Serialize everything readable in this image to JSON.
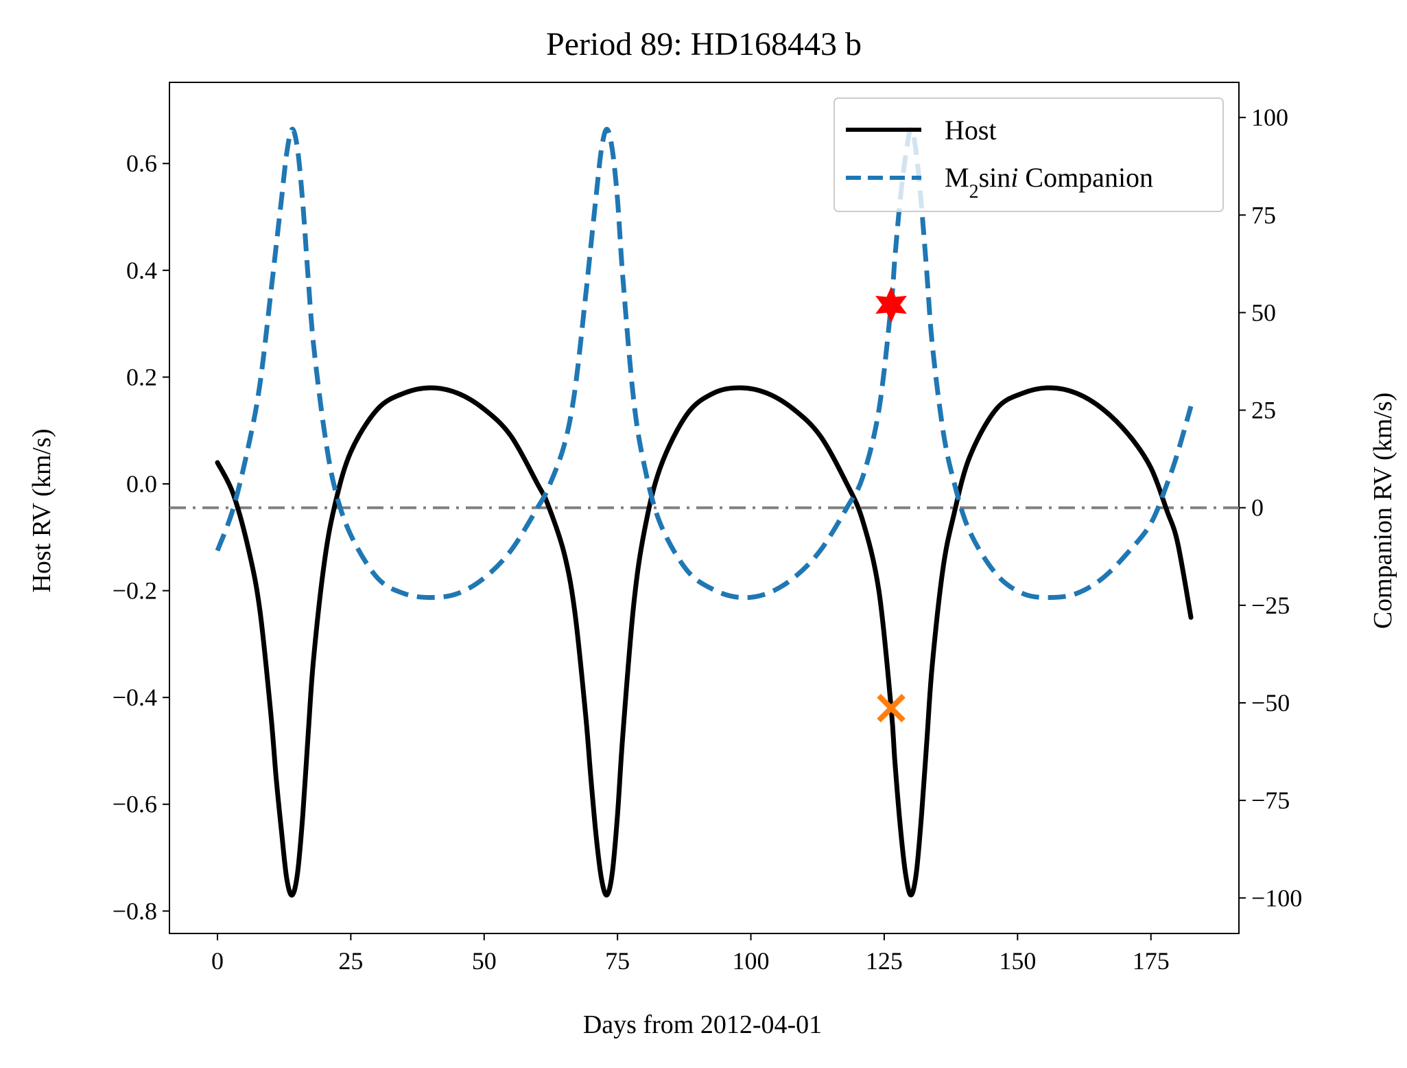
{
  "chart_data": {
    "type": "line",
    "title": "Period 89: HD168443 b",
    "xlabel": "Days from 2012-04-01",
    "ylabel_left": "Host RV (km/s)",
    "ylabel_right": "Companion RV (km/s)",
    "xlim": [
      -9,
      191.5
    ],
    "ylim_left": [
      -0.842,
      0.752
    ],
    "ylim_right": [
      -109.1,
      109.0
    ],
    "x_ticks": [
      0,
      25,
      50,
      75,
      100,
      125,
      150,
      175
    ],
    "x_tick_labels": [
      "0",
      "25",
      "50",
      "75",
      "100",
      "125",
      "150",
      "175"
    ],
    "y_left_ticks": [
      0.6,
      0.4,
      0.2,
      0.0,
      -0.2,
      -0.4,
      -0.6,
      -0.8
    ],
    "y_left_tick_labels": [
      "0.6",
      "0.4",
      "0.2",
      "0.0",
      "−0.2",
      "−0.4",
      "−0.6",
      "−0.8"
    ],
    "y_right_ticks": [
      100,
      75,
      50,
      25,
      0,
      -25,
      -50,
      -75,
      -100
    ],
    "y_right_tick_labels": [
      "100",
      "75",
      "50",
      "25",
      "0",
      "−25",
      "−50",
      "−75",
      "−100"
    ],
    "grid": false,
    "legend_position": "top-right",
    "series": [
      {
        "name": "Host",
        "axis": "left",
        "style": "solid",
        "color": "#000000",
        "x": [
          0,
          3,
          6,
          8,
          10,
          11,
          12,
          13,
          14,
          15,
          16,
          17,
          18,
          20,
          22,
          25,
          30,
          35,
          40,
          45,
          50,
          55,
          60,
          62,
          65,
          67,
          69,
          70,
          71,
          72,
          73,
          74,
          75,
          76,
          78,
          80,
          83,
          88,
          93,
          98,
          103,
          108,
          113,
          118,
          121,
          124,
          126.3,
          127,
          128,
          129,
          130,
          131,
          132,
          133,
          134,
          136,
          138,
          141,
          146,
          151,
          156,
          161,
          166,
          171,
          175,
          178,
          180,
          182.5
        ],
        "y": [
          0.04,
          -0.02,
          -0.13,
          -0.24,
          -0.43,
          -0.55,
          -0.65,
          -0.74,
          -0.77,
          -0.73,
          -0.62,
          -0.47,
          -0.33,
          -0.15,
          -0.04,
          0.06,
          0.14,
          0.17,
          0.18,
          0.17,
          0.14,
          0.09,
          0.0,
          -0.04,
          -0.13,
          -0.24,
          -0.43,
          -0.55,
          -0.66,
          -0.74,
          -0.77,
          -0.73,
          -0.62,
          -0.47,
          -0.23,
          -0.09,
          0.03,
          0.13,
          0.17,
          0.18,
          0.17,
          0.14,
          0.09,
          0.0,
          -0.07,
          -0.2,
          -0.42,
          -0.52,
          -0.64,
          -0.73,
          -0.77,
          -0.73,
          -0.62,
          -0.48,
          -0.34,
          -0.16,
          -0.06,
          0.05,
          0.14,
          0.17,
          0.18,
          0.17,
          0.14,
          0.09,
          0.03,
          -0.05,
          -0.11,
          -0.25
        ]
      },
      {
        "name": "M₂sin i Companion",
        "axis": "right",
        "style": "dashed",
        "color": "#1f77b4",
        "x": [
          0,
          3,
          6,
          8,
          10,
          11,
          12,
          13,
          14,
          15,
          16,
          17,
          18,
          20,
          22,
          25,
          30,
          35,
          40,
          45,
          50,
          55,
          60,
          62,
          65,
          67,
          69,
          70,
          71,
          72,
          73,
          74,
          75,
          76,
          78,
          80,
          83,
          88,
          93,
          98,
          103,
          108,
          113,
          118,
          121,
          124,
          126.3,
          127,
          128,
          129,
          130,
          131,
          132,
          133,
          134,
          136,
          138,
          141,
          146,
          151,
          156,
          161,
          166,
          171,
          175,
          178,
          180,
          182.5
        ],
        "y": [
          -11,
          0,
          17,
          32,
          55,
          67,
          79,
          91,
          97,
          92,
          78,
          59,
          42,
          20,
          5,
          -7,
          -18,
          -22,
          -23,
          -22,
          -18,
          -11,
          0,
          5,
          16,
          30,
          54,
          67,
          80,
          92,
          97,
          92,
          79,
          59,
          28,
          11,
          -4,
          -16,
          -21,
          -23,
          -22,
          -18,
          -11,
          0,
          8,
          25,
          52,
          64,
          79,
          90,
          97,
          91,
          77,
          60,
          42,
          20,
          7,
          -6,
          -17,
          -22,
          -23,
          -22,
          -18,
          -11,
          -4,
          6,
          14,
          26
        ]
      }
    ],
    "reference_line": {
      "axis": "right",
      "y": 0,
      "style": "dash-dot",
      "color": "#808080"
    },
    "markers": [
      {
        "symbol": "star",
        "axis": "right",
        "x": 126.3,
        "y": 52,
        "color": "#ff0000"
      },
      {
        "symbol": "x",
        "axis": "left",
        "x": 126.3,
        "y": -0.42,
        "color": "#ff7f0e"
      }
    ],
    "legend": [
      {
        "label": "Host",
        "style": "solid",
        "color": "#000000"
      },
      {
        "label_main": "M",
        "label_sub": "2",
        "label_mid": "sin",
        "label_italic": "i",
        "label_tail": " Companion",
        "style": "dashed",
        "color": "#1f77b4"
      }
    ]
  }
}
